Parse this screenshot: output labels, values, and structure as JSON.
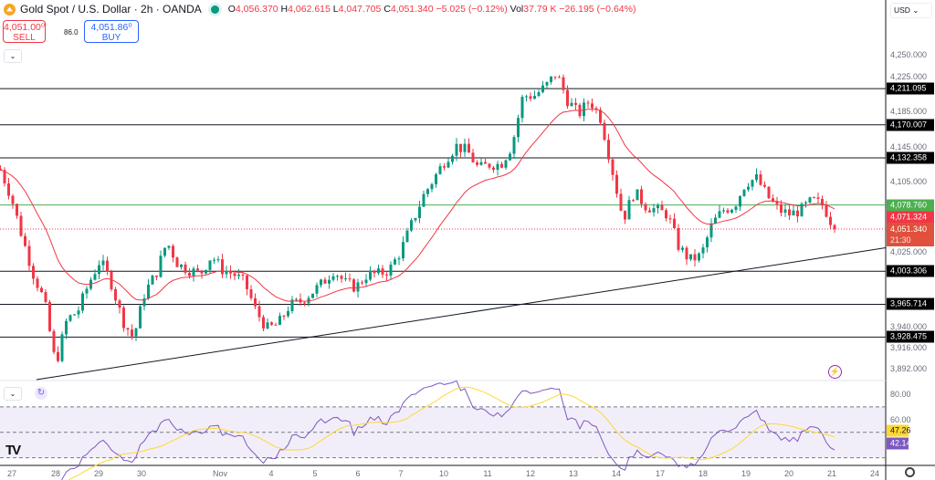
{
  "header": {
    "title": "Gold Spot / U.S. Dollar · 2h · OANDA",
    "open_label": "O",
    "open": "4,056.370",
    "high_label": "H",
    "high": "4,062.615",
    "low_label": "L",
    "low": "4,047.705",
    "close_label": "C",
    "close": "4,051.340",
    "change": "−5.025 (−0.12%)",
    "vol_label": "Vol",
    "vol": "37.79 K",
    "vol_change": "−26.195 (−0.64%)",
    "status_color": "#089981"
  },
  "trade": {
    "sell_price": "4,051.00⁰",
    "sell_label": "SELL",
    "spread": "86.0",
    "buy_price": "4,051.86⁰",
    "buy_label": "BUY"
  },
  "currency": "USD ⌄",
  "collapse_icon": "⌄",
  "colors": {
    "up": "#089981",
    "down": "#f23645",
    "ema": "#f23645",
    "rsi": "#7e57c2",
    "rsi_ma": "#fdd835",
    "level": "#131722",
    "green_level": "#4caf50"
  },
  "chart_data": {
    "type": "candlestick",
    "interval": "2h",
    "ylim": [
      3880,
      4312
    ],
    "price_ticks": [
      "4,250.000",
      "4,225.000",
      "4,185.000",
      "4,145.000",
      "4,105.000",
      "4,025.000",
      "3,940.000",
      "3,916.000",
      "3,892.000"
    ],
    "approx_closes": [
      4120,
      4088,
      4042,
      4000,
      3969,
      3896,
      3948,
      3958,
      3990,
      4016,
      3990,
      3948,
      3927,
      3979,
      4000,
      4037,
      4011,
      4005,
      4000,
      4021,
      4005,
      4000,
      3990,
      3958,
      3938,
      3943,
      3964,
      3969,
      3979,
      3990,
      4005,
      3990,
      3985,
      4000,
      4000,
      4005,
      4026,
      4057,
      4088,
      4109,
      4130,
      4146,
      4140,
      4120,
      4125,
      4125,
      4146,
      4203,
      4203,
      4213,
      4229,
      4198,
      4182,
      4198,
      4177,
      4120,
      4062,
      4094,
      4078,
      4073,
      4068,
      4031,
      4016,
      4021,
      4057,
      4073,
      4078,
      4104,
      4109,
      4088,
      4073,
      4068,
      4073,
      4084,
      4078,
      4051
    ],
    "levels": [
      {
        "value": "4,211.095",
        "price": 4211.095
      },
      {
        "value": "4,170.007",
        "price": 4170.007
      },
      {
        "value": "4,132.358",
        "price": 4132.358
      },
      {
        "value": "4,003.306",
        "price": 4003.306
      },
      {
        "value": "3,965.714",
        "price": 3965.714
      },
      {
        "value": "3,928.475",
        "price": 3928.475
      }
    ],
    "green_level": {
      "value": "4,078.760",
      "price": 4078.76
    },
    "ema_value": "4,071.324",
    "last_price": {
      "value": "4,051.340",
      "price": 4051.34,
      "countdown": "21:30"
    },
    "trendline": {
      "from_price": 3880,
      "to_price": 4030
    },
    "x_labels": [
      "27",
      "28",
      "29",
      "30",
      "Nov",
      "4",
      "5",
      "6",
      "7",
      "10",
      "11",
      "12",
      "13",
      "14",
      "17",
      "18",
      "19",
      "20",
      "21",
      "24"
    ],
    "rsi": {
      "ylim": [
        24,
        90
      ],
      "ticks": [
        "80.00",
        "60.00"
      ],
      "bands": [
        70,
        50,
        30
      ],
      "ma_value": "47.26",
      "value": "42.14"
    }
  }
}
